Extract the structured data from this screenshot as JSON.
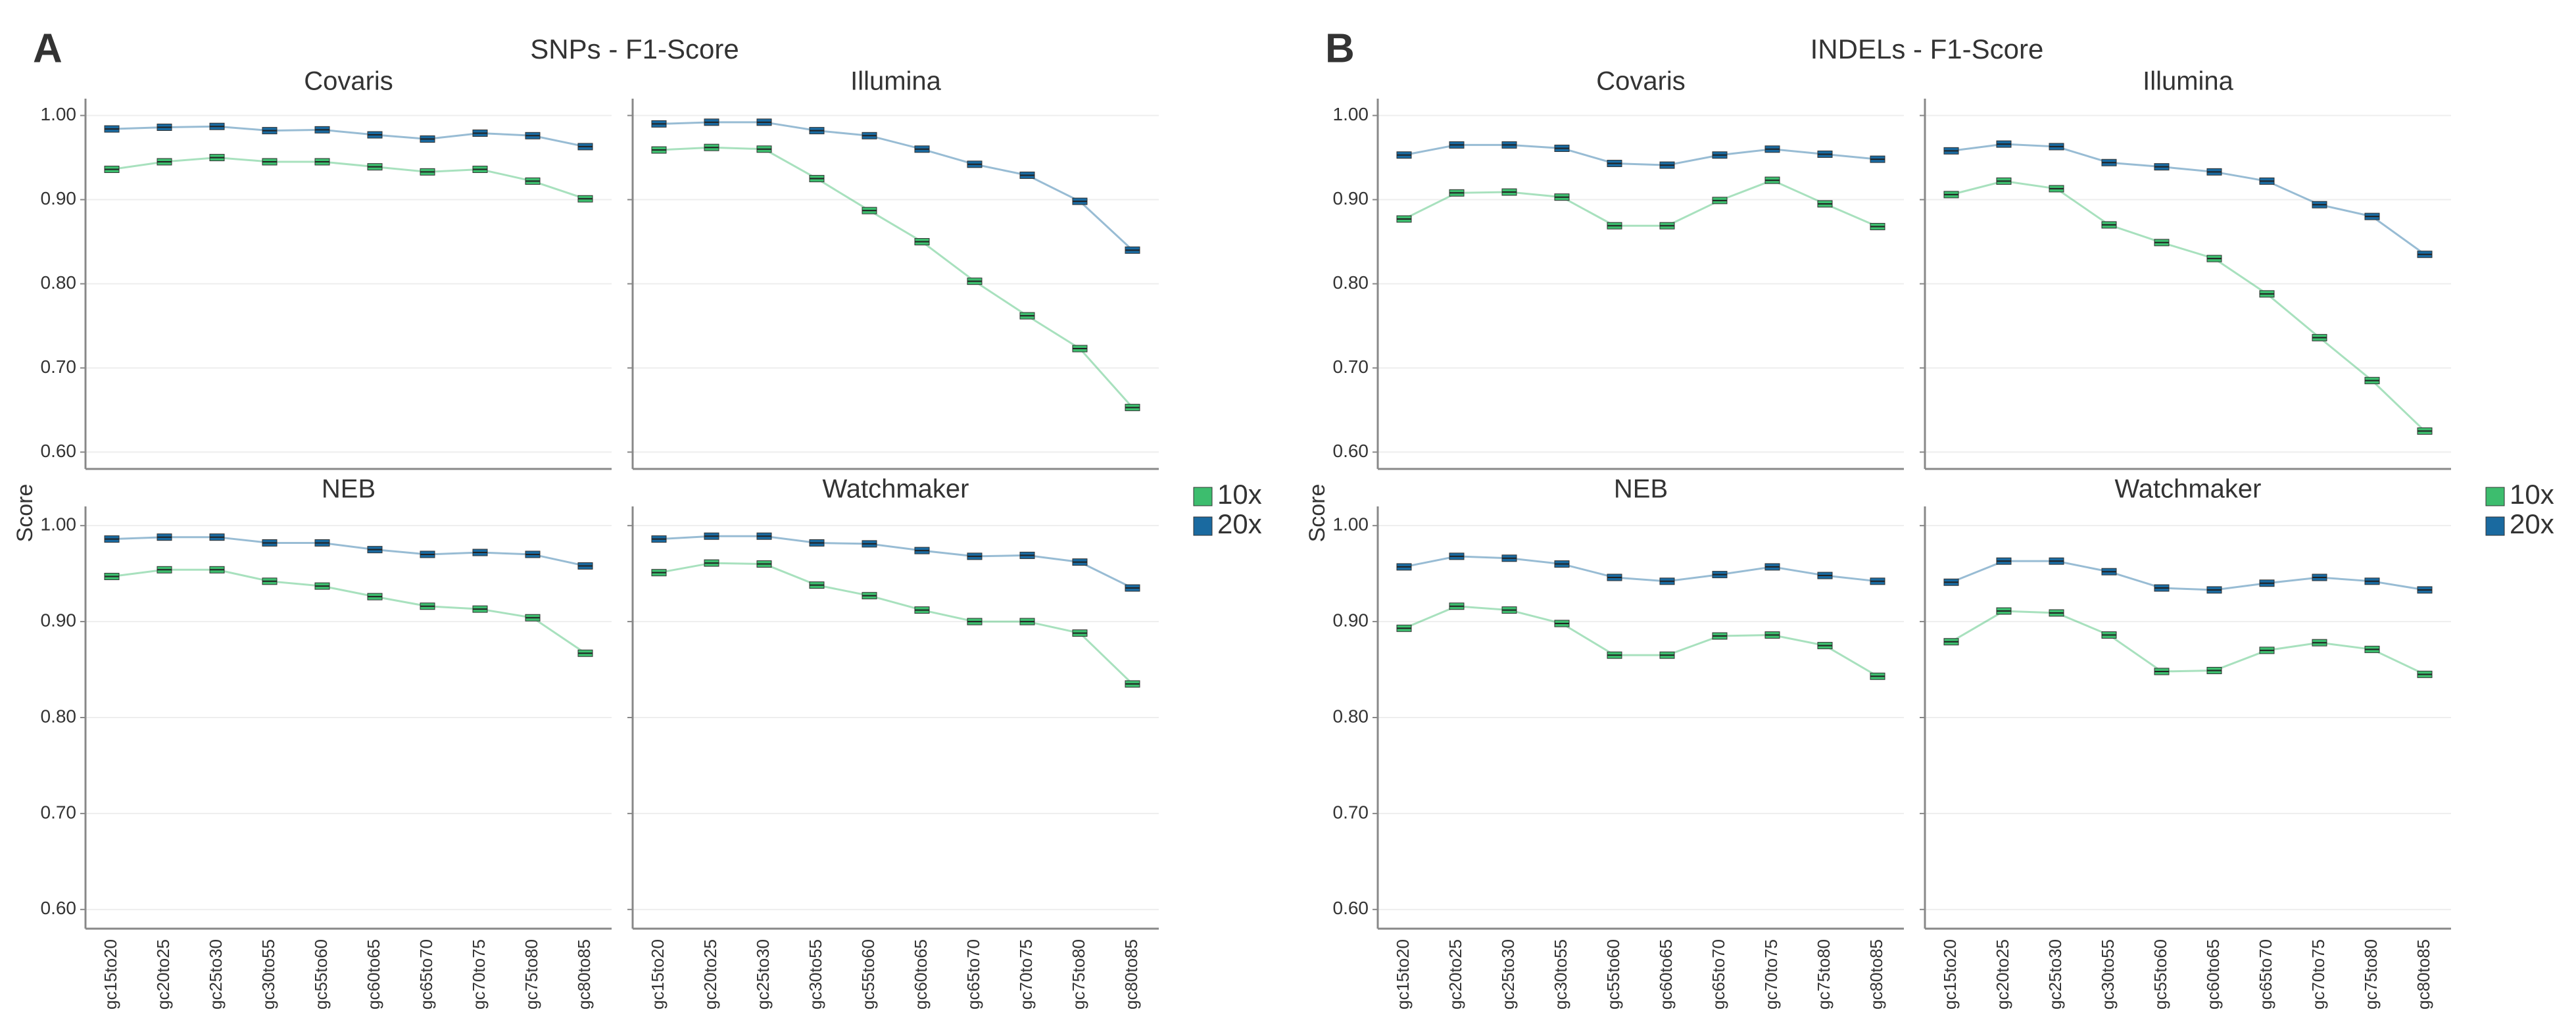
{
  "chart_data": [
    {
      "type": "line",
      "label": "A",
      "title": "SNPs - F1-Score",
      "y_label": "Score",
      "categories": [
        "gc15to20",
        "gc20to25",
        "gc25to30",
        "gc30to55",
        "gc55to60",
        "gc60to65",
        "gc65to70",
        "gc70to75",
        "gc75to80",
        "gc80to85"
      ],
      "ylim": [
        0.58,
        1.02
      ],
      "yticks": [
        {
          "value": 0.6,
          "label": "0.60"
        },
        {
          "value": 0.7,
          "label": "0.70"
        },
        {
          "value": 0.8,
          "label": "0.80"
        },
        {
          "value": 0.9,
          "label": "0.90"
        },
        {
          "value": 1.0,
          "label": "1.00"
        }
      ],
      "grid": true,
      "facets": [
        {
          "title": "Covaris",
          "series": [
            {
              "name": "10x",
              "color": "#3dbd6e",
              "values": [
                0.936,
                0.945,
                0.95,
                0.945,
                0.945,
                0.939,
                0.933,
                0.936,
                0.922,
                0.901
              ]
            },
            {
              "name": "20x",
              "color": "#1a6aa0",
              "values": [
                0.984,
                0.986,
                0.987,
                0.982,
                0.983,
                0.977,
                0.972,
                0.979,
                0.976,
                0.963
              ]
            }
          ]
        },
        {
          "title": "Illumina",
          "series": [
            {
              "name": "10x",
              "color": "#3dbd6e",
              "values": [
                0.959,
                0.962,
                0.96,
                0.925,
                0.887,
                0.85,
                0.803,
                0.762,
                0.723,
                0.653
              ]
            },
            {
              "name": "20x",
              "color": "#1a6aa0",
              "values": [
                0.99,
                0.992,
                0.992,
                0.982,
                0.976,
                0.96,
                0.942,
                0.929,
                0.898,
                0.84
              ]
            }
          ]
        },
        {
          "title": "NEB",
          "series": [
            {
              "name": "10x",
              "color": "#3dbd6e",
              "values": [
                0.947,
                0.954,
                0.954,
                0.942,
                0.937,
                0.926,
                0.916,
                0.913,
                0.904,
                0.867
              ]
            },
            {
              "name": "20x",
              "color": "#1a6aa0",
              "values": [
                0.986,
                0.988,
                0.988,
                0.982,
                0.982,
                0.975,
                0.97,
                0.972,
                0.97,
                0.958
              ]
            }
          ]
        },
        {
          "title": "Watchmaker",
          "series": [
            {
              "name": "10x",
              "color": "#3dbd6e",
              "values": [
                0.951,
                0.961,
                0.96,
                0.938,
                0.927,
                0.912,
                0.9,
                0.9,
                0.888,
                0.835
              ]
            },
            {
              "name": "20x",
              "color": "#1a6aa0",
              "values": [
                0.986,
                0.989,
                0.989,
                0.982,
                0.981,
                0.974,
                0.968,
                0.969,
                0.962,
                0.935
              ]
            }
          ]
        }
      ]
    },
    {
      "type": "line",
      "label": "B",
      "title": "INDELs - F1-Score",
      "y_label": "Score",
      "categories": [
        "gc15to20",
        "gc20to25",
        "gc25to30",
        "gc30to55",
        "gc55to60",
        "gc60to65",
        "gc65to70",
        "gc70to75",
        "gc75to80",
        "gc80to85"
      ],
      "ylim": [
        0.58,
        1.02
      ],
      "yticks": [
        {
          "value": 0.6,
          "label": "0.60"
        },
        {
          "value": 0.7,
          "label": "0.70"
        },
        {
          "value": 0.8,
          "label": "0.80"
        },
        {
          "value": 0.9,
          "label": "0.90"
        },
        {
          "value": 1.0,
          "label": "1.00"
        }
      ],
      "grid": true,
      "facets": [
        {
          "title": "Covaris",
          "series": [
            {
              "name": "10x",
              "color": "#3dbd6e",
              "values": [
                0.877,
                0.908,
                0.909,
                0.903,
                0.869,
                0.869,
                0.899,
                0.923,
                0.895,
                0.868
              ]
            },
            {
              "name": "20x",
              "color": "#1a6aa0",
              "values": [
                0.953,
                0.965,
                0.965,
                0.961,
                0.943,
                0.941,
                0.953,
                0.96,
                0.954,
                0.948
              ]
            }
          ]
        },
        {
          "title": "Illumina",
          "series": [
            {
              "name": "10x",
              "color": "#3dbd6e",
              "values": [
                0.906,
                0.922,
                0.913,
                0.87,
                0.849,
                0.83,
                0.788,
                0.736,
                0.685,
                0.625
              ]
            },
            {
              "name": "20x",
              "color": "#1a6aa0",
              "values": [
                0.958,
                0.966,
                0.963,
                0.944,
                0.939,
                0.933,
                0.922,
                0.894,
                0.88,
                0.835
              ]
            }
          ]
        },
        {
          "title": "NEB",
          "series": [
            {
              "name": "10x",
              "color": "#3dbd6e",
              "values": [
                0.893,
                0.916,
                0.912,
                0.898,
                0.865,
                0.865,
                0.885,
                0.886,
                0.875,
                0.843
              ]
            },
            {
              "name": "20x",
              "color": "#1a6aa0",
              "values": [
                0.957,
                0.968,
                0.966,
                0.96,
                0.946,
                0.942,
                0.949,
                0.957,
                0.948,
                0.942
              ]
            }
          ]
        },
        {
          "title": "Watchmaker",
          "series": [
            {
              "name": "10x",
              "color": "#3dbd6e",
              "values": [
                0.879,
                0.911,
                0.909,
                0.886,
                0.848,
                0.849,
                0.87,
                0.878,
                0.871,
                0.845
              ]
            },
            {
              "name": "20x",
              "color": "#1a6aa0",
              "values": [
                0.941,
                0.963,
                0.963,
                0.952,
                0.935,
                0.933,
                0.94,
                0.946,
                0.942,
                0.933
              ]
            }
          ]
        }
      ]
    }
  ]
}
